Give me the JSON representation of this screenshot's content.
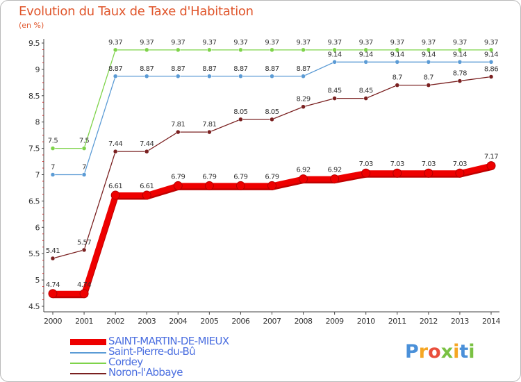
{
  "title": "Evolution du Taux de Taxe d'Habitation",
  "unit_label": "(en %)",
  "logo": {
    "text": "Proxiti",
    "letters": [
      {
        "ch": "P",
        "color": "#4a90d9"
      },
      {
        "ch": "r",
        "color": "#f5a623"
      },
      {
        "ch": "o",
        "color": "#e94e3c"
      },
      {
        "ch": "x",
        "color": "#7ac143"
      },
      {
        "ch": "i",
        "color": "#f5a623"
      },
      {
        "ch": "t",
        "color": "#4a90d9"
      },
      {
        "ch": "i",
        "color": "#7ac143"
      }
    ]
  },
  "chart_data": {
    "type": "line",
    "title": "Evolution du Taux de Taxe d'Habitation",
    "ylabel": "(en %)",
    "xlabel": "",
    "ylim": [
      4.5,
      9.5
    ],
    "y_ticks": [
      "4.5",
      "5",
      "5.5",
      "6",
      "6.5",
      "7",
      "7.5",
      "8",
      "8.5",
      "9",
      "9.5"
    ],
    "grid": false,
    "legend_position": "bottom-left",
    "x": [
      "2000",
      "2001",
      "2002",
      "2003",
      "2004",
      "2005",
      "2006",
      "2007",
      "2008",
      "2009",
      "2010",
      "2011",
      "2012",
      "2013",
      "2014"
    ],
    "series": [
      {
        "name": "SAINT-MARTIN-DE-MIEUX",
        "color": "#ee0000",
        "legend_text_color": "#4a6ee0",
        "values": [
          4.74,
          4.74,
          6.61,
          6.61,
          6.79,
          6.79,
          6.79,
          6.79,
          6.92,
          6.92,
          7.03,
          7.03,
          7.03,
          7.03,
          7.17
        ],
        "labels": [
          "4.74",
          "4.74",
          "6.61",
          "6.61",
          "6.79",
          "6.79",
          "6.79",
          "6.79",
          "6.92",
          "6.92",
          "7.03",
          "7.03",
          "7.03",
          "7.03",
          "7.17"
        ]
      },
      {
        "name": "Saint-Pierre-du-Bû",
        "color": "#5b9bd5",
        "legend_text_color": "#4a6ee0",
        "values": [
          7.0,
          7.0,
          8.87,
          8.87,
          8.87,
          8.87,
          8.87,
          8.87,
          8.87,
          9.14,
          9.14,
          9.14,
          9.14,
          9.14,
          9.14
        ],
        "labels": [
          "7",
          "7",
          "8.87",
          "8.87",
          "8.87",
          "8.87",
          "8.87",
          "8.87",
          "8.87",
          "9.14",
          "9.14",
          "9.14",
          "9.14",
          "9.14",
          "9.14"
        ]
      },
      {
        "name": "Cordey",
        "color": "#7ed34a",
        "legend_text_color": "#4a6ee0",
        "values": [
          7.5,
          7.5,
          9.37,
          9.37,
          9.37,
          9.37,
          9.37,
          9.37,
          9.37,
          9.37,
          9.37,
          9.37,
          9.37,
          9.37,
          9.37
        ],
        "labels": [
          "7.5",
          "7.5",
          "9.37",
          "9.37",
          "9.37",
          "9.37",
          "9.37",
          "9.37",
          "9.37",
          "9.37",
          "9.37",
          "9.37",
          "9.37",
          "9.37",
          "9.37"
        ]
      },
      {
        "name": "Noron-l'Abbaye",
        "color": "#7a2020",
        "legend_text_color": "#4a6ee0",
        "values": [
          5.41,
          5.57,
          7.44,
          7.44,
          7.81,
          7.81,
          8.05,
          8.05,
          8.29,
          8.45,
          8.45,
          8.7,
          8.7,
          8.78,
          8.86
        ],
        "labels": [
          "5.41",
          "5.57",
          "7.44",
          "7.44",
          "7.81",
          "7.81",
          "8.05",
          "8.05",
          "8.29",
          "8.45",
          "8.45",
          "8.7",
          "8.7",
          "8.78",
          "8.86"
        ]
      }
    ]
  }
}
